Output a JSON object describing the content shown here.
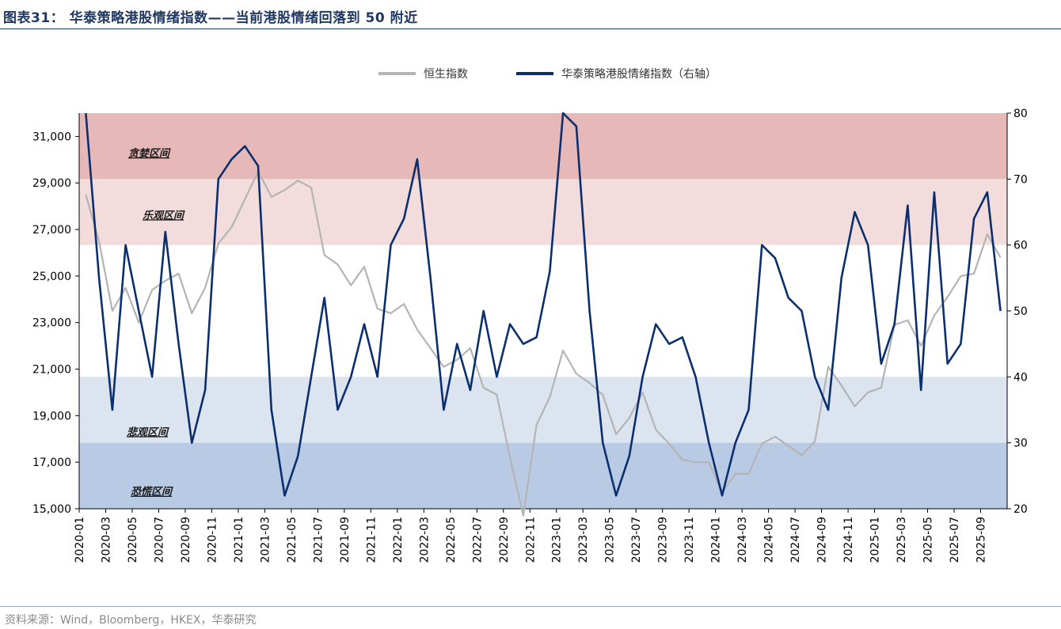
{
  "header": {
    "title": "图表31：  华泰策略港股情绪指数——当前港股情绪回落到 50 附近"
  },
  "footer": {
    "source": "资料来源：Wind，Bloomberg，HKEX，华泰研究"
  },
  "colors": {
    "hsi": "#b4b4b4",
    "sentiment": "#0b2f6e",
    "greed_zone": "#e6b8b8",
    "optimism_zone": "#f2dcdc",
    "pessimism_zone": "#dce4f0",
    "panic_zone": "#b9cbe4",
    "title": "#1f3864"
  },
  "chart_data": {
    "type": "line",
    "title": "",
    "legend": {
      "position": "top-center",
      "entries": [
        "恒生指数",
        "华泰策略港股情绪指数（右轴）"
      ]
    },
    "x_ticks": [
      "2020-01",
      "2020-03",
      "2020-05",
      "2020-07",
      "2020-09",
      "2020-11",
      "2021-01",
      "2021-03",
      "2021-05",
      "2021-07",
      "2021-09",
      "2021-11",
      "2022-01",
      "2022-03",
      "2022-05",
      "2022-07",
      "2022-09",
      "2022-11",
      "2023-01",
      "2023-03",
      "2023-05",
      "2023-07",
      "2023-09",
      "2023-11",
      "2024-01",
      "2024-03",
      "2024-05",
      "2024-07",
      "2024-09",
      "2024-11",
      "2025-01",
      "2025-03",
      "2025-05",
      "2025-07",
      "2025-09"
    ],
    "y_left": {
      "min": 15000,
      "max": 32000,
      "ticks": [
        "15,000",
        "17,000",
        "19,000",
        "21,000",
        "23,000",
        "25,000",
        "27,000",
        "29,000",
        "31,000"
      ]
    },
    "y_right": {
      "min": 20,
      "max": 80,
      "ticks": [
        "20",
        "30",
        "40",
        "50",
        "60",
        "70",
        "80"
      ]
    },
    "zones": [
      {
        "name": "贪婪区间",
        "from": 70,
        "to": 80
      },
      {
        "name": "乐观区间",
        "from": 60,
        "to": 70
      },
      {
        "name": "悲观区间",
        "from": 30,
        "to": 40
      },
      {
        "name": "恐慌区间",
        "from": 20,
        "to": 30
      }
    ],
    "series": [
      {
        "name": "恒生指数",
        "axis": "left",
        "x": [
          "2020-01",
          "2020-02",
          "2020-03",
          "2020-04",
          "2020-05",
          "2020-06",
          "2020-07",
          "2020-08",
          "2020-09",
          "2020-10",
          "2020-11",
          "2020-12",
          "2021-01",
          "2021-02",
          "2021-03",
          "2021-04",
          "2021-05",
          "2021-06",
          "2021-07",
          "2021-08",
          "2021-09",
          "2021-10",
          "2021-11",
          "2021-12",
          "2022-01",
          "2022-02",
          "2022-03",
          "2022-04",
          "2022-05",
          "2022-06",
          "2022-07",
          "2022-08",
          "2022-09",
          "2022-10",
          "2022-11",
          "2022-12",
          "2023-01",
          "2023-02",
          "2023-03",
          "2023-04",
          "2023-05",
          "2023-06",
          "2023-07",
          "2023-08",
          "2023-09",
          "2023-10",
          "2023-11",
          "2023-12",
          "2024-01",
          "2024-02",
          "2024-03",
          "2024-04",
          "2024-05",
          "2024-06",
          "2024-07",
          "2024-08",
          "2024-09",
          "2024-10",
          "2024-11",
          "2024-12",
          "2025-01",
          "2025-02",
          "2025-03",
          "2025-04",
          "2025-05",
          "2025-06",
          "2025-07",
          "2025-08",
          "2025-09",
          "2025-10"
        ],
        "values": [
          28500,
          26500,
          23500,
          24500,
          23000,
          24400,
          24800,
          25100,
          23400,
          24500,
          26400,
          27100,
          28300,
          29500,
          28400,
          28700,
          29100,
          28800,
          25900,
          25500,
          24600,
          25400,
          23600,
          23400,
          23800,
          22700,
          21900,
          21100,
          21400,
          21900,
          20200,
          19900,
          17200,
          14700,
          18600,
          19800,
          21800,
          20800,
          20400,
          19900,
          18200,
          18900,
          20000,
          18400,
          17800,
          17100,
          17000,
          17000,
          15700,
          16500,
          16500,
          17800,
          18100,
          17700,
          17300,
          17900,
          21100,
          20300,
          19400,
          20000,
          20200,
          22900,
          23100,
          22000,
          23300,
          24100,
          25000,
          25100,
          26800,
          25800
        ]
      },
      {
        "name": "华泰策略港股情绪指数（右轴）",
        "axis": "right",
        "x": [
          "2020-01",
          "2020-02",
          "2020-03",
          "2020-04",
          "2020-05",
          "2020-06",
          "2020-07",
          "2020-08",
          "2020-09",
          "2020-10",
          "2020-11",
          "2020-12",
          "2021-01",
          "2021-02",
          "2021-03",
          "2021-04",
          "2021-05",
          "2021-06",
          "2021-07",
          "2021-08",
          "2021-09",
          "2021-10",
          "2021-11",
          "2021-12",
          "2022-01",
          "2022-02",
          "2022-03",
          "2022-04",
          "2022-05",
          "2022-06",
          "2022-07",
          "2022-08",
          "2022-09",
          "2022-10",
          "2022-11",
          "2022-12",
          "2023-01",
          "2023-02",
          "2023-03",
          "2023-04",
          "2023-05",
          "2023-06",
          "2023-07",
          "2023-08",
          "2023-09",
          "2023-10",
          "2023-11",
          "2023-12",
          "2024-01",
          "2024-02",
          "2024-03",
          "2024-04",
          "2024-05",
          "2024-06",
          "2024-07",
          "2024-08",
          "2024-09",
          "2024-10",
          "2024-11",
          "2024-12",
          "2025-01",
          "2025-02",
          "2025-03",
          "2025-04",
          "2025-05",
          "2025-06",
          "2025-07",
          "2025-08",
          "2025-09",
          "2025-10"
        ],
        "values": [
          80,
          55,
          35,
          60,
          50,
          40,
          62,
          45,
          30,
          38,
          70,
          73,
          75,
          72,
          35,
          22,
          28,
          40,
          52,
          35,
          40,
          48,
          40,
          60,
          64,
          73,
          55,
          35,
          45,
          38,
          50,
          40,
          48,
          45,
          46,
          56,
          80,
          78,
          50,
          30,
          22,
          28,
          40,
          48,
          45,
          46,
          40,
          30,
          22,
          30,
          35,
          60,
          58,
          52,
          50,
          40,
          35,
          55,
          65,
          60,
          42,
          48,
          66,
          38,
          68,
          42,
          45,
          64,
          68,
          50
        ]
      }
    ]
  }
}
